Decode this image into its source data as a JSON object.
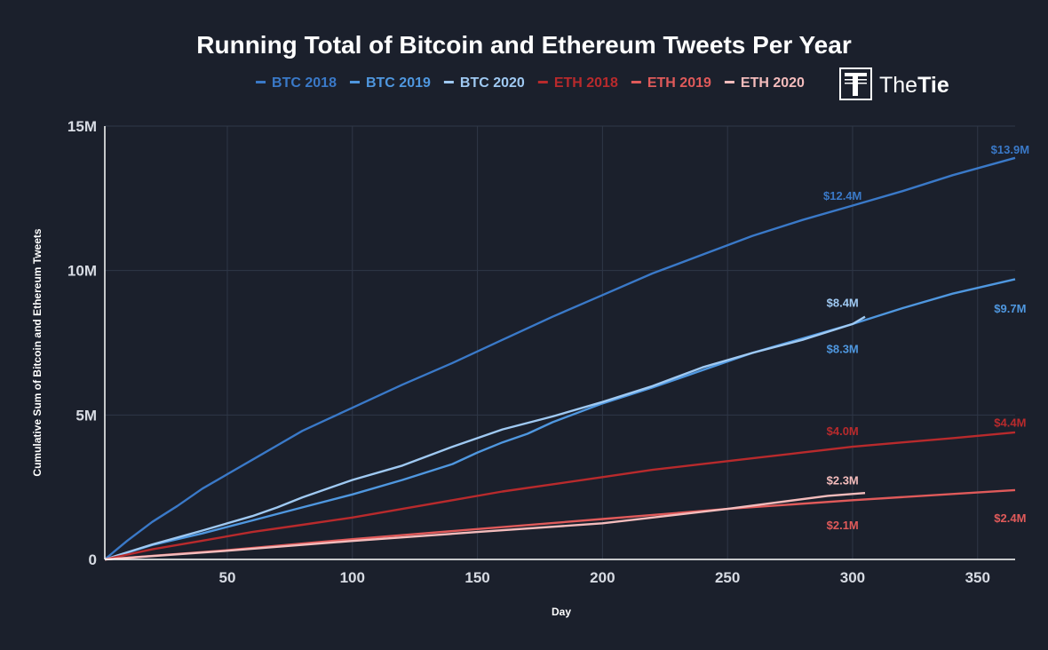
{
  "chart_data": {
    "type": "line",
    "title": "Running Total of Bitcoin and Ethereum Tweets Per Year",
    "xlabel": "Day",
    "ylabel": "Cumulative Sum of Bitcoin and Ethereum Tweets",
    "xlim": [
      1,
      365
    ],
    "ylim": [
      0,
      15000000
    ],
    "x_ticks": [
      50,
      100,
      150,
      200,
      250,
      300,
      350
    ],
    "y_ticks": [
      {
        "value": 0,
        "label": "0"
      },
      {
        "value": 5000000,
        "label": "5M"
      },
      {
        "value": 10000000,
        "label": "10M"
      },
      {
        "value": 15000000,
        "label": "15M"
      }
    ],
    "grid": true,
    "legend_position": "top-center",
    "series": [
      {
        "name": "BTC 2018",
        "color": "#3a79c8",
        "x": [
          1,
          10,
          20,
          30,
          40,
          50,
          60,
          70,
          80,
          90,
          100,
          120,
          140,
          160,
          180,
          200,
          220,
          240,
          260,
          280,
          300,
          320,
          340,
          365
        ],
        "values": [
          0,
          650000,
          1300000,
          1850000,
          2450000,
          2950000,
          3450000,
          3950000,
          4450000,
          4850000,
          5250000,
          6050000,
          6800000,
          7600000,
          8400000,
          9150000,
          9900000,
          10550000,
          11200000,
          11750000,
          12250000,
          12750000,
          13300000,
          13900000
        ]
      },
      {
        "name": "BTC 2019",
        "color": "#4f97df",
        "x": [
          1,
          20,
          40,
          60,
          80,
          100,
          120,
          140,
          150,
          160,
          170,
          180,
          200,
          220,
          240,
          260,
          280,
          300,
          320,
          340,
          365
        ],
        "values": [
          0,
          500000,
          900000,
          1350000,
          1800000,
          2250000,
          2750000,
          3300000,
          3700000,
          4050000,
          4350000,
          4750000,
          5400000,
          5950000,
          6550000,
          7150000,
          7650000,
          8150000,
          8700000,
          9200000,
          9700000
        ]
      },
      {
        "name": "BTC 2020",
        "color": "#9fc9f2",
        "x": [
          1,
          20,
          40,
          60,
          70,
          80,
          100,
          120,
          140,
          160,
          180,
          200,
          220,
          240,
          260,
          280,
          300,
          305
        ],
        "values": [
          0,
          520000,
          1000000,
          1500000,
          1800000,
          2150000,
          2750000,
          3250000,
          3900000,
          4500000,
          4950000,
          5450000,
          6000000,
          6650000,
          7150000,
          7600000,
          8150000,
          8400000
        ]
      },
      {
        "name": "ETH 2018",
        "color": "#b82a2c",
        "x": [
          1,
          20,
          40,
          60,
          80,
          100,
          120,
          140,
          160,
          180,
          200,
          220,
          240,
          260,
          280,
          300,
          320,
          340,
          365
        ],
        "values": [
          0,
          350000,
          650000,
          950000,
          1200000,
          1450000,
          1750000,
          2050000,
          2350000,
          2600000,
          2850000,
          3100000,
          3300000,
          3500000,
          3700000,
          3900000,
          4050000,
          4200000,
          4400000
        ]
      },
      {
        "name": "ETH 2019",
        "color": "#e05a5a",
        "x": [
          1,
          50,
          100,
          150,
          200,
          250,
          300,
          365
        ],
        "values": [
          0,
          320000,
          700000,
          1050000,
          1400000,
          1750000,
          2050000,
          2400000
        ]
      },
      {
        "name": "ETH 2020",
        "color": "#f4bcbc",
        "x": [
          1,
          50,
          100,
          150,
          200,
          250,
          290,
          305
        ],
        "values": [
          0,
          300000,
          640000,
          950000,
          1250000,
          1750000,
          2200000,
          2300000
        ]
      }
    ],
    "annotations": [
      {
        "text": "$13.9M",
        "color": "#3a79c8",
        "x": 363,
        "y": 14200000,
        "anchor": "middle"
      },
      {
        "text": "$12.4M",
        "color": "#3a79c8",
        "x": 296,
        "y": 12600000,
        "anchor": "middle"
      },
      {
        "text": "$8.4M",
        "color": "#9fc9f2",
        "x": 296,
        "y": 8900000,
        "anchor": "middle"
      },
      {
        "text": "$9.7M",
        "color": "#4f97df",
        "x": 363,
        "y": 8700000,
        "anchor": "middle"
      },
      {
        "text": "$8.3M",
        "color": "#4f97df",
        "x": 296,
        "y": 7300000,
        "anchor": "middle"
      },
      {
        "text": "$4.0M",
        "color": "#b82a2c",
        "x": 296,
        "y": 4450000,
        "anchor": "middle"
      },
      {
        "text": "$4.4M",
        "color": "#b82a2c",
        "x": 363,
        "y": 4750000,
        "anchor": "middle"
      },
      {
        "text": "$2.3M",
        "color": "#f4bcbc",
        "x": 296,
        "y": 2750000,
        "anchor": "middle"
      },
      {
        "text": "$2.4M",
        "color": "#e05a5a",
        "x": 363,
        "y": 1450000,
        "anchor": "middle"
      },
      {
        "text": "$2.1M",
        "color": "#e05a5a",
        "x": 296,
        "y": 1200000,
        "anchor": "middle"
      }
    ]
  },
  "brand": {
    "name_light": "The",
    "name_bold": "Tie",
    "icon": "thetie-logo-icon"
  },
  "colors": {
    "background": "#1b202c",
    "grid": "#2f3747",
    "axis": "#ffffff"
  }
}
